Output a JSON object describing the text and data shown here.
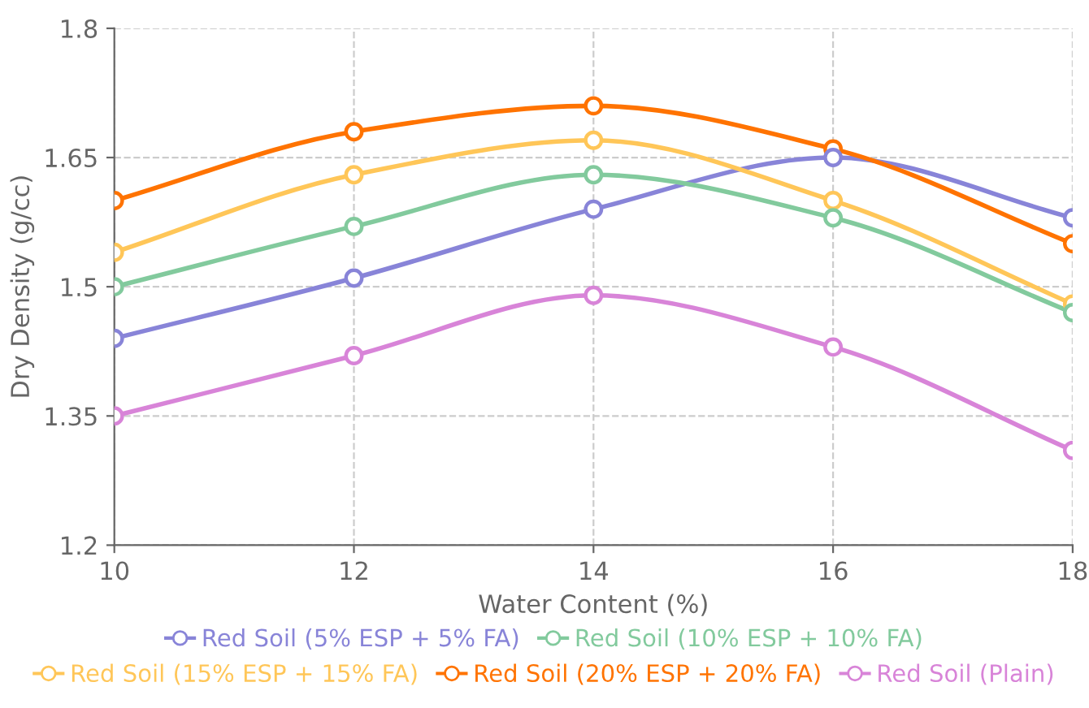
{
  "chart_data": {
    "type": "line",
    "xlabel": "Water Content (%)",
    "ylabel": "Dry Density (g/cc)",
    "x": [
      10,
      12,
      14,
      16,
      18
    ],
    "xlim": [
      10,
      18
    ],
    "xticks": [
      10,
      12,
      14,
      16,
      18
    ],
    "ylim": [
      1.2,
      1.8
    ],
    "yticks": [
      1.2,
      1.35,
      1.5,
      1.65,
      1.8
    ],
    "grid": true,
    "legend": "bottom",
    "marker": "circle",
    "line_style": "solid",
    "series": [
      {
        "name": "Red Soil (5% ESP + 5% FA)",
        "color": "#8884d8",
        "values": [
          1.44,
          1.51,
          1.59,
          1.65,
          1.58
        ]
      },
      {
        "name": "Red Soil (10% ESP + 10% FA)",
        "color": "#82ca9d",
        "values": [
          1.5,
          1.57,
          1.63,
          1.58,
          1.47
        ]
      },
      {
        "name": "Red Soil (15% ESP + 15% FA)",
        "color": "#ffc658",
        "values": [
          1.54,
          1.63,
          1.67,
          1.6,
          1.48
        ]
      },
      {
        "name": "Red Soil (20% ESP + 20% FA)",
        "color": "#ff7300",
        "values": [
          1.6,
          1.68,
          1.71,
          1.66,
          1.55
        ]
      },
      {
        "name": "Red Soil (Plain)",
        "color": "#d884d8",
        "values": [
          1.35,
          1.42,
          1.49,
          1.43,
          1.31
        ]
      }
    ]
  }
}
